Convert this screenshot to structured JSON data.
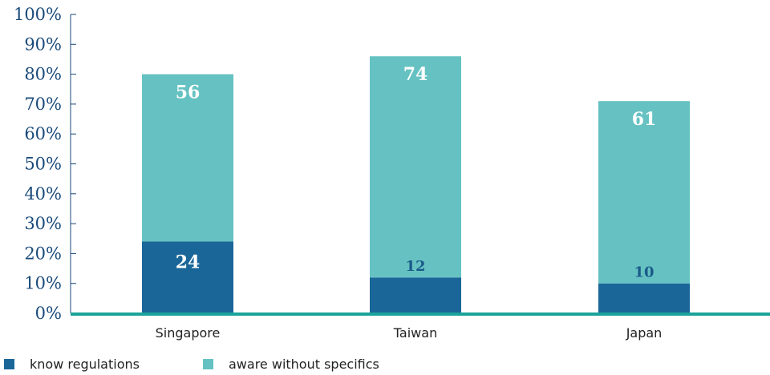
{
  "chart_data": {
    "type": "bar",
    "stacked": true,
    "categories": [
      "Singapore",
      "Taiwan",
      "Japan"
    ],
    "series": [
      {
        "name": "know regulations",
        "values": [
          24,
          12,
          10
        ],
        "color": "#1a6699",
        "label_color": "#ffffff"
      },
      {
        "name": "aware without specifics",
        "values": [
          56,
          74,
          61
        ],
        "color": "#66c2c2",
        "label_color": "#ffffff"
      }
    ],
    "data_labels": [
      {
        "series": 0,
        "labels": [
          "24",
          "12",
          "10"
        ],
        "colors": [
          "#ffffff",
          "#1a5a8a",
          "#1a5a8a"
        ]
      },
      {
        "series": 1,
        "labels": [
          "56",
          "74",
          "61"
        ],
        "colors": [
          "#ffffff",
          "#ffffff",
          "#ffffff"
        ]
      }
    ],
    "yticks": [
      "0%",
      "10%",
      "20%",
      "30%",
      "40%",
      "50%",
      "60%",
      "70%",
      "80%",
      "90%",
      "100%"
    ],
    "ylim": [
      0,
      100
    ],
    "legend": "bottom-left",
    "grid": false,
    "axis_color": "#1aa39a"
  }
}
